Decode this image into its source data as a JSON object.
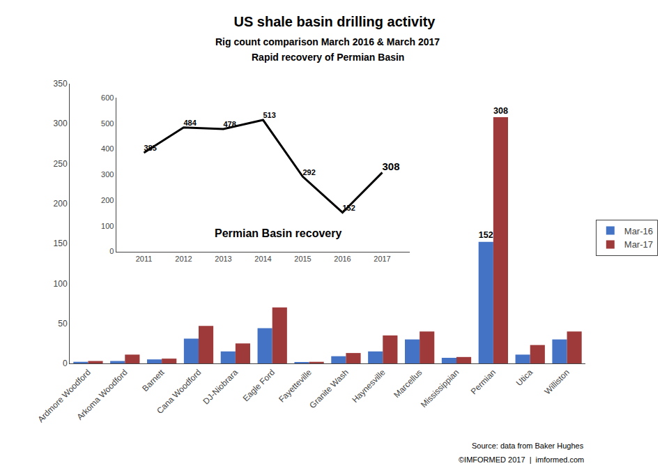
{
  "chart_data": [
    {
      "type": "bar",
      "title": "US shale basin drilling activity",
      "subtitle": [
        "Rig count comparison March 2016 & March 2017",
        "Rapid recovery of Permian Basin"
      ],
      "annotations": [
        "Source: data from Baker Hughes",
        "©IMFORMED 2017  |  imformed.com"
      ],
      "categories": [
        "Ardmore Woodford",
        "Arkoma Woodford",
        "Barnett",
        "Cana Woodford",
        "DJ-Niobrara",
        "Eagle Ford",
        "Fayetteville",
        "Granite Wash",
        "Haynesville",
        "Marcellus",
        "Mississippian",
        "Permian",
        "Utica",
        "Williston"
      ],
      "series": [
        {
          "name": "Mar-16",
          "color": "#4472C4",
          "values": [
            2,
            3,
            5,
            31,
            15,
            44,
            1,
            9,
            15,
            30,
            7,
            152,
            11,
            30
          ],
          "value_labels": [
            null,
            null,
            null,
            null,
            null,
            null,
            null,
            null,
            null,
            null,
            null,
            "152",
            null,
            null
          ]
        },
        {
          "name": "Mar-17",
          "color": "#9E3A3A",
          "values": [
            3,
            11,
            6,
            47,
            25,
            70,
            2,
            13,
            35,
            40,
            8,
            308,
            23,
            40
          ],
          "value_labels": [
            null,
            null,
            null,
            null,
            null,
            null,
            null,
            null,
            null,
            null,
            null,
            "308",
            null,
            null
          ]
        }
      ],
      "ylim": [
        0,
        350
      ],
      "yticks": [
        0,
        50,
        100,
        150,
        200,
        250,
        300,
        350
      ],
      "grid": false,
      "legend": "right",
      "data_labels": true
    },
    {
      "type": "line",
      "annotations": [
        "Permian Basin recovery"
      ],
      "x": [
        2011,
        2012,
        2013,
        2014,
        2015,
        2016,
        2017
      ],
      "values": [
        385,
        484,
        478,
        513,
        292,
        152,
        308
      ],
      "color": "black",
      "xlim": [
        2010.3,
        2017.7
      ],
      "xticks": [
        2011,
        2012,
        2013,
        2014,
        2015,
        2016,
        2017
      ],
      "ylim": [
        0,
        600
      ],
      "yticks": [
        0,
        100,
        200,
        300,
        400,
        500,
        600
      ],
      "grid": false,
      "data_labels": true
    }
  ]
}
